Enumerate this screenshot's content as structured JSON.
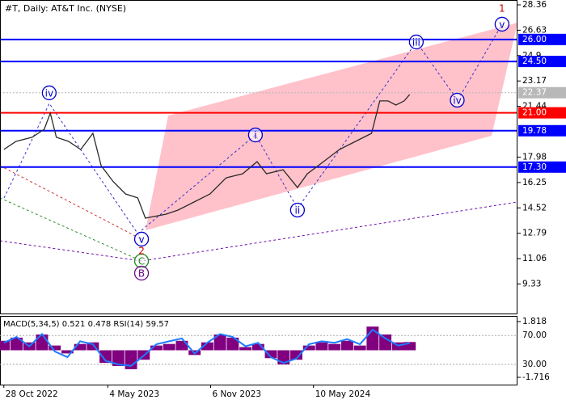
{
  "chart_data": {
    "type": "line",
    "title": "#T, Daily:  AT&T Inc. (NYSE)",
    "x": [
      0,
      22,
      51,
      73,
      84,
      95,
      117,
      139,
      161,
      176,
      198,
      220,
      242,
      256,
      271,
      293,
      315,
      344,
      373,
      402,
      432,
      458,
      475,
      505,
      531,
      549,
      578,
      607,
      636,
      665,
      680,
      695,
      709,
      724,
      734
    ],
    "series": [
      {
        "name": "T",
        "color": "#2a2a2a",
        "values": [
          18.5,
          19.05,
          19.33,
          19.88,
          20.98,
          19.33,
          19.05,
          18.5,
          19.6,
          17.4,
          16.3,
          15.47,
          15.2,
          13.82,
          13.93,
          14.09,
          14.37,
          14.92,
          15.47,
          16.57,
          16.85,
          17.67,
          16.85,
          17.12,
          15.91,
          16.85,
          17.67,
          18.5,
          19.05,
          19.6,
          21.81,
          21.81,
          21.53,
          21.81,
          22.25
        ]
      }
    ],
    "xlim": [
      -7,
      929
    ],
    "ylim": [
      7.32,
      28.69
    ],
    "xticks": [
      {
        "value": 0,
        "label": "28 Oct 2022"
      },
      {
        "value": 188,
        "label": "4 May 2023"
      },
      {
        "value": 374,
        "label": "6 Nov 2023"
      },
      {
        "value": 560,
        "label": "10 May 2024"
      }
    ],
    "yticks": [
      28.36,
      26.63,
      24.9,
      23.17,
      21.44,
      17.98,
      16.25,
      14.52,
      12.79,
      11.06,
      9.33
    ],
    "levels": [
      {
        "value": 26,
        "label": "26.00",
        "color": "#0000ff"
      },
      {
        "value": 24.5,
        "label": "24.50",
        "color": "#0000ff"
      },
      {
        "value": 21,
        "label": "21.00",
        "color": "#ff0000"
      },
      {
        "value": 19.78,
        "label": "19.78",
        "color": "#0000ff"
      },
      {
        "value": 17.3,
        "label": "17.30",
        "color": "#0000ff"
      }
    ],
    "current_price": {
      "value": 22.37,
      "label": "22.37",
      "color": "#b8b8b8"
    },
    "annotations": [
      {
        "label": "iv",
        "x": 82,
        "y": 22.36,
        "color": "#0000cc",
        "circle": true
      },
      {
        "label": "i",
        "x": 455,
        "y": 19.49,
        "color": "#0000cc",
        "circle": true
      },
      {
        "label": "ii",
        "x": 531,
        "y": 14.37,
        "color": "#0000cc",
        "circle": true
      },
      {
        "label": "iii",
        "x": 746,
        "y": 25.83,
        "color": "#0000cc",
        "circle": true
      },
      {
        "label": "iv",
        "x": 820,
        "y": 21.86,
        "color": "#0000cc",
        "circle": true
      },
      {
        "label": "v",
        "x": 901,
        "y": 27.04,
        "color": "#0000cc",
        "circle": true
      },
      {
        "label": "v",
        "x": 249,
        "y": 12.39,
        "color": "#0000cc",
        "circle": true
      },
      {
        "label": "C",
        "x": 249,
        "y": 10.9,
        "color": "#228b22",
        "circle": true
      },
      {
        "label": "B",
        "x": 249,
        "y": 10.07,
        "color": "#6a0d83",
        "circle": true
      },
      {
        "label": "1",
        "x": 901,
        "y": 28.14,
        "color": "#cc0000",
        "circle": false
      },
      {
        "label": "2",
        "x": 249,
        "y": 11.62,
        "color": "#cc0000",
        "circle": false
      }
    ],
    "indicator": {
      "label": "MACD(5,34,5) 0.521 0.478 RSI(14) 59.57",
      "x": [
        0,
        23,
        46,
        69,
        92,
        115,
        138,
        161,
        184,
        207,
        230,
        253,
        276,
        299,
        322,
        345,
        368,
        391,
        414,
        437,
        460,
        483,
        506,
        529,
        552,
        575,
        598,
        621,
        644,
        667,
        690,
        713,
        734
      ],
      "macd": {
        "name": "MACD",
        "color": "#800080",
        "values": [
          0.6,
          0.8,
          0.5,
          1.0,
          0.3,
          -0.2,
          0.4,
          0.5,
          -0.8,
          -1.0,
          -1.2,
          -0.6,
          0.3,
          0.4,
          0.6,
          -0.3,
          0.5,
          1.0,
          0.8,
          0.2,
          0.4,
          -0.5,
          -0.9,
          -0.6,
          0.3,
          0.5,
          0.4,
          0.6,
          0.3,
          1.5,
          1.0,
          0.5,
          0.521
        ]
      },
      "rsi": {
        "name": "RSI",
        "color": "#1e7bff",
        "values": [
          60,
          68,
          55,
          72,
          48,
          40,
          62,
          58,
          35,
          30,
          28,
          42,
          58,
          62,
          66,
          45,
          60,
          72,
          68,
          55,
          60,
          40,
          32,
          38,
          58,
          62,
          60,
          65,
          58,
          78,
          66,
          56,
          59.57
        ]
      },
      "ylim": [
        -2.177,
        2.125
      ],
      "yticks": [
        {
          "value": 1.818,
          "label": "1.818"
        },
        {
          "value": -1.716,
          "label": "-1.716"
        }
      ],
      "y2lim": [
        2,
        96
      ],
      "y2ticks": [
        {
          "value": 70,
          "label": "70.00"
        },
        {
          "value": 30,
          "label": "30.00"
        }
      ]
    }
  }
}
